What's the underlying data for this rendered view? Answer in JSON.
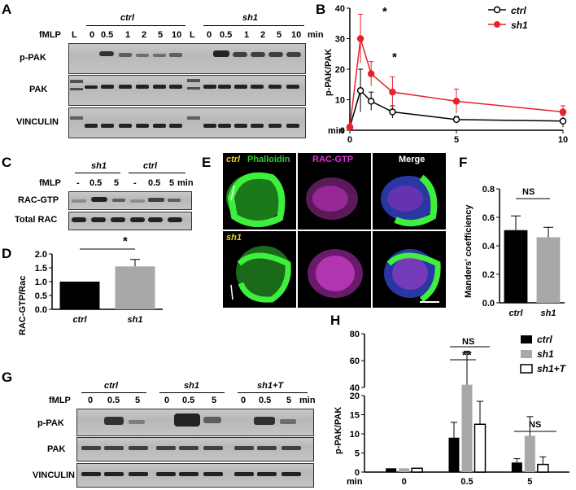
{
  "panels": {
    "A": "A",
    "B": "B",
    "C": "C",
    "D": "D",
    "E": "E",
    "F": "F",
    "G": "G",
    "H": "H"
  },
  "a": {
    "group_ctrl": "ctrl",
    "group_sh1": "sh1",
    "fmlp": "fMLP",
    "ladder": "L",
    "times": [
      "0",
      "0.5",
      "1",
      "2",
      "5",
      "10"
    ],
    "min": "min",
    "rows": [
      "p-PAK",
      "PAK",
      "VINCULIN"
    ]
  },
  "b": {
    "ylabel": "p-PAK/PAK",
    "xlabel": "min",
    "legend": [
      "ctrl",
      "sh1"
    ],
    "star": "*"
  },
  "c": {
    "group_sh1": "sh1",
    "group_ctrl": "ctrl",
    "fmlp": "fMLP",
    "times": [
      "-",
      "0.5",
      "5",
      "-",
      "0.5",
      "5"
    ],
    "min": "min",
    "rows": [
      "RAC-GTP",
      "Total RAC"
    ]
  },
  "d": {
    "ylabel": "RAC-GTP/Rac",
    "star": "*"
  },
  "e": {
    "cols": [
      "Phalloidin",
      "RAC-GTP",
      "Merge"
    ],
    "rows": [
      "ctrl",
      "sh1"
    ]
  },
  "f": {
    "ylabel": "Manders' coefficiency",
    "ns": "NS"
  },
  "g": {
    "groups": [
      "ctrl",
      "sh1",
      "sh1+T"
    ],
    "fmlp": "fMLP",
    "times": [
      "0",
      "0.5",
      "5",
      "0",
      "0.5",
      "5",
      "0",
      "0.5",
      "5"
    ],
    "min": "min",
    "rows": [
      "p-PAK",
      "PAK",
      "VINCULIN"
    ]
  },
  "h": {
    "ylabel": "p-PAK/PAK",
    "xlabel": "min",
    "legend": [
      "ctrl",
      "sh1",
      "sh1+T"
    ],
    "ns1": "NS",
    "ns2": "NS",
    "stars": "**"
  },
  "colors": {
    "ctrl": "#000000",
    "sh1_red": "#e8212b",
    "sh1_gray": "#a8a8a8",
    "green": "#22cc22",
    "magenta": "#dd22dd",
    "blue": "#3344cc"
  },
  "chart_data": [
    {
      "type": "line",
      "x": [
        0,
        0.5,
        1,
        2,
        5,
        10
      ],
      "ylim": [
        0,
        40
      ],
      "xlim": [
        0,
        10
      ],
      "xticks": [
        0,
        5,
        10
      ],
      "yticks": [
        0,
        10,
        20,
        30,
        40
      ],
      "ylabel": "p-PAK/PAK",
      "xlabel": "min",
      "series": [
        {
          "name": "ctrl",
          "values": [
            1,
            13,
            9.5,
            6,
            3.5,
            3
          ],
          "errors": [
            0,
            7,
            3,
            2,
            1,
            2
          ]
        },
        {
          "name": "sh1",
          "values": [
            1,
            30,
            18.5,
            12.5,
            9.5,
            6
          ],
          "errors": [
            0,
            8,
            4,
            5,
            4,
            2
          ]
        }
      ],
      "legend": "top-right"
    },
    {
      "type": "bar",
      "categories": [
        "ctrl",
        "sh1"
      ],
      "values": [
        1.0,
        1.55
      ],
      "errors": [
        0,
        0.25
      ],
      "ylim": [
        0,
        2.0
      ],
      "yticks": [
        0,
        0.5,
        1.0,
        1.5,
        2.0
      ],
      "ylabel": "RAC-GTP/Rac"
    },
    {
      "type": "bar",
      "categories": [
        "ctrl",
        "sh1"
      ],
      "values": [
        0.51,
        0.46
      ],
      "errors": [
        0.1,
        0.07
      ],
      "ylim": [
        0,
        0.8
      ],
      "yticks": [
        0,
        0.2,
        0.4,
        0.6,
        0.8
      ],
      "ylabel": "Manders' coefficiency"
    },
    {
      "type": "bar",
      "categories": [
        "0",
        "0.5",
        "5"
      ],
      "series": [
        {
          "name": "ctrl",
          "values": [
            1,
            9,
            2.5
          ],
          "errors": [
            0,
            4,
            1
          ]
        },
        {
          "name": "sh1",
          "values": [
            1,
            42,
            9.5
          ],
          "errors": [
            0,
            25,
            5
          ]
        },
        {
          "name": "sh1+T",
          "values": [
            1,
            12.5,
            2
          ],
          "errors": [
            0,
            6,
            2
          ]
        }
      ],
      "yticks_lower": [
        0,
        5,
        10,
        15,
        20
      ],
      "yticks_upper": [
        40,
        60,
        80
      ],
      "ylabel": "p-PAK/PAK",
      "xlabel": "min",
      "legend": "top-right"
    }
  ]
}
